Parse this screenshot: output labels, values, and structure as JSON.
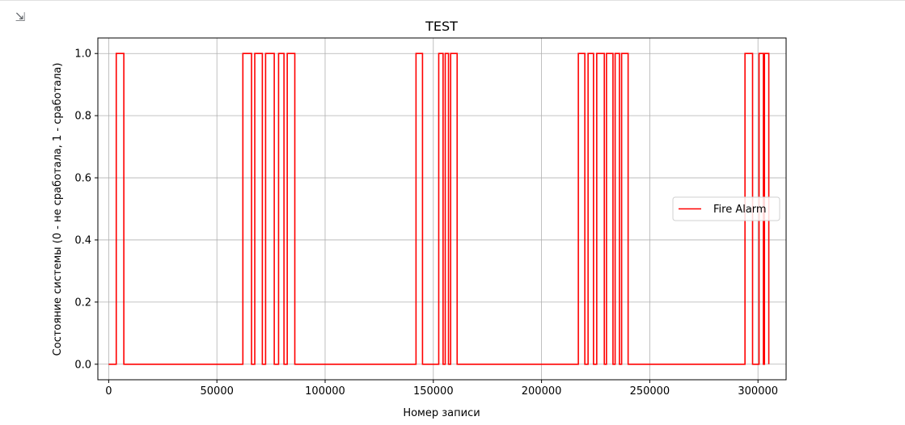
{
  "output_cell": {
    "icon": "output-toggle-icon",
    "icon_glyph": "⇲"
  },
  "chart_data": {
    "type": "line",
    "step": true,
    "title": "TEST",
    "xlabel": "Номер записи",
    "ylabel": "Состояние системы (0 - не сработала, 1 - сработала)",
    "xlim": [
      -5000,
      313000
    ],
    "ylim": [
      -0.05,
      1.05
    ],
    "xticks": [
      0,
      50000,
      100000,
      150000,
      200000,
      250000,
      300000
    ],
    "xtick_labels": [
      "0",
      "50000",
      "100000",
      "150000",
      "200000",
      "250000",
      "300000"
    ],
    "yticks": [
      0.0,
      0.2,
      0.4,
      0.6,
      0.8,
      1.0
    ],
    "ytick_labels": [
      "0.0",
      "0.2",
      "0.4",
      "0.6",
      "0.8",
      "1.0"
    ],
    "grid": true,
    "legend": "center-right",
    "series": [
      {
        "name": "Fire Alarm",
        "color": "#ff0000",
        "x_start": 0,
        "x_end": 305000,
        "initial": 0,
        "pulses": [
          [
            3500,
            7000
          ],
          [
            62000,
            66000
          ],
          [
            67500,
            71000
          ],
          [
            72500,
            76500
          ],
          [
            78500,
            81000
          ],
          [
            82500,
            86000
          ],
          [
            142000,
            145000
          ],
          [
            152500,
            154500
          ],
          [
            155500,
            157000
          ],
          [
            158000,
            161000
          ],
          [
            217000,
            220000
          ],
          [
            221500,
            224000
          ],
          [
            225500,
            229000
          ],
          [
            230000,
            233000
          ],
          [
            234000,
            236000
          ],
          [
            237000,
            240000
          ],
          [
            294000,
            297500
          ],
          [
            300500,
            302500
          ],
          [
            303000,
            305000
          ]
        ]
      }
    ]
  }
}
